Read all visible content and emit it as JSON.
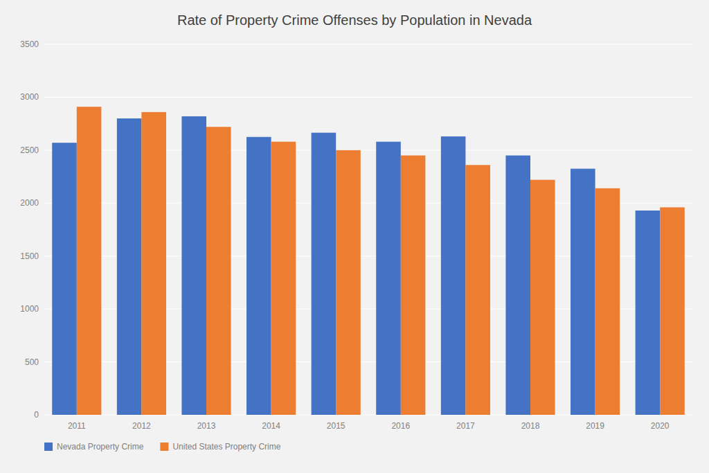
{
  "chart_data": {
    "type": "bar",
    "title": "Rate of Property Crime Offenses by Population in Nevada",
    "categories": [
      "2011",
      "2012",
      "2013",
      "2014",
      "2015",
      "2016",
      "2017",
      "2018",
      "2019",
      "2020"
    ],
    "series": [
      {
        "name": "Nevada Property Crime",
        "color": "#4472C4",
        "values": [
          2570,
          2800,
          2820,
          2625,
          2665,
          2580,
          2630,
          2450,
          2325,
          1930
        ]
      },
      {
        "name": "United States Property Crime",
        "color": "#ED7D31",
        "values": [
          2910,
          2860,
          2720,
          2580,
          2500,
          2450,
          2360,
          2220,
          2140,
          1960
        ]
      }
    ],
    "ylim": [
      0,
      3500
    ],
    "yticks": [
      0,
      500,
      1000,
      1500,
      2000,
      2500,
      3000,
      3500
    ],
    "grid": true,
    "legend": "lower left"
  }
}
